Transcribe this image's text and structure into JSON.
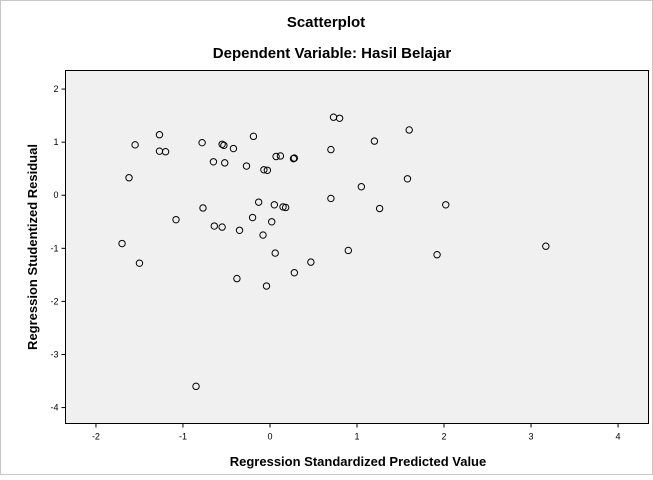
{
  "chart_data": {
    "type": "scatter",
    "title": "Scatterplot",
    "subtitle": "Dependent Variable: Hasil Belajar",
    "xlabel": "Regression Standardized Predicted Value",
    "ylabel": "Regression Studentized Residual",
    "xlim": [
      -2.35,
      4.35
    ],
    "ylim": [
      -4.3,
      2.35
    ],
    "xticks": [
      "-2",
      "-1",
      "0",
      "1",
      "2",
      "3",
      "4"
    ],
    "yticks": [
      "2",
      "1",
      "0",
      "-1",
      "-2",
      "-3",
      "-4"
    ],
    "grid": false,
    "legend": "none",
    "colors": {
      "plot_background": "#f0f0f0",
      "marker": "#000000",
      "frame": "#c8c8c8"
    },
    "points": [
      [
        -1.55,
        0.95
      ],
      [
        -1.62,
        0.33
      ],
      [
        -1.27,
        1.14
      ],
      [
        -1.27,
        0.83
      ],
      [
        -1.2,
        0.82
      ],
      [
        -0.78,
        0.99
      ],
      [
        -0.55,
        0.96
      ],
      [
        -0.53,
        0.94
      ],
      [
        -0.42,
        0.88
      ],
      [
        -0.19,
        1.11
      ],
      [
        -0.65,
        0.63
      ],
      [
        -0.52,
        0.61
      ],
      [
        -0.27,
        0.55
      ],
      [
        -0.07,
        0.48
      ],
      [
        -0.03,
        0.47
      ],
      [
        0.07,
        0.73
      ],
      [
        0.12,
        0.74
      ],
      [
        0.27,
        0.69
      ],
      [
        0.28,
        0.7
      ],
      [
        0.73,
        1.47
      ],
      [
        0.8,
        1.45
      ],
      [
        0.7,
        0.86
      ],
      [
        1.2,
        1.02
      ],
      [
        1.6,
        1.23
      ],
      [
        1.58,
        0.31
      ],
      [
        1.05,
        0.16
      ],
      [
        0.7,
        -0.06
      ],
      [
        -0.77,
        -0.24
      ],
      [
        -1.08,
        -0.46
      ],
      [
        -1.7,
        -0.91
      ],
      [
        -1.5,
        -1.28
      ],
      [
        -0.64,
        -0.58
      ],
      [
        -0.55,
        -0.6
      ],
      [
        -0.35,
        -0.66
      ],
      [
        -0.2,
        -0.42
      ],
      [
        -0.13,
        -0.13
      ],
      [
        -0.08,
        -0.75
      ],
      [
        0.05,
        -0.18
      ],
      [
        0.15,
        -0.22
      ],
      [
        0.18,
        -0.23
      ],
      [
        0.02,
        -0.5
      ],
      [
        0.06,
        -1.09
      ],
      [
        -0.38,
        -1.57
      ],
      [
        -0.04,
        -1.71
      ],
      [
        0.28,
        -1.46
      ],
      [
        0.47,
        -1.26
      ],
      [
        0.9,
        -1.04
      ],
      [
        1.26,
        -0.25
      ],
      [
        2.02,
        -0.18
      ],
      [
        1.92,
        -1.12
      ],
      [
        3.17,
        -0.96
      ],
      [
        -0.85,
        -3.6
      ]
    ]
  }
}
